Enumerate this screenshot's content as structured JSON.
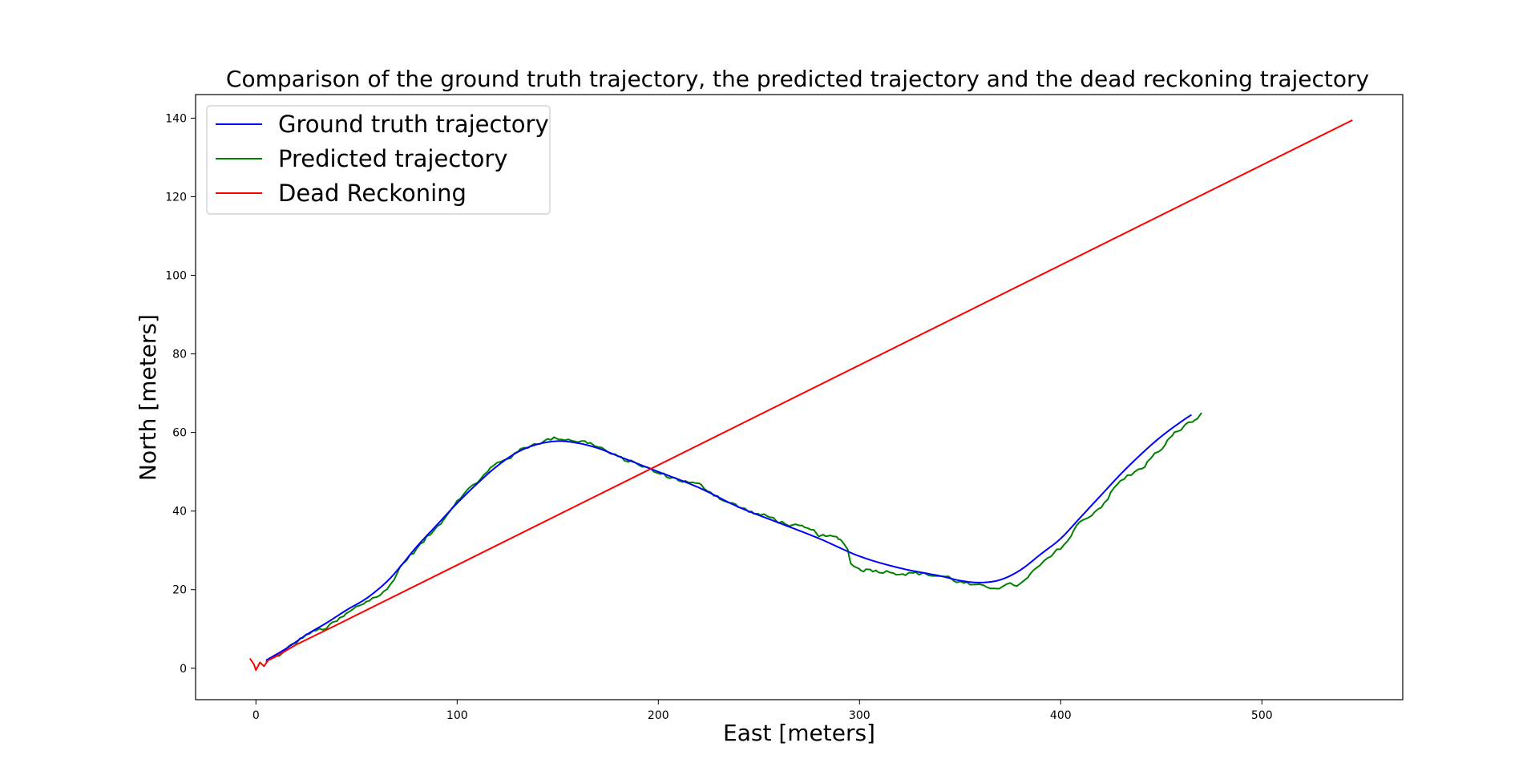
{
  "chart_data": {
    "type": "line",
    "title": "Comparison of the ground truth trajectory, the predicted trajectory and the dead reckoning trajectory",
    "xlabel": "East [meters]",
    "ylabel": "North [meters]",
    "xlim": [
      -30,
      570
    ],
    "ylim": [
      -8,
      146
    ],
    "xticks": [
      0,
      100,
      200,
      300,
      400,
      500
    ],
    "yticks": [
      0,
      20,
      40,
      60,
      80,
      100,
      120,
      140
    ],
    "grid": false,
    "legend_position": "upper-left",
    "series": [
      {
        "name": "Ground truth trajectory",
        "color": "#0000ff",
        "style": "smooth",
        "x": [
          5,
          15,
          25,
          35,
          45,
          55,
          65,
          72,
          80,
          90,
          100,
          110,
          120,
          130,
          140,
          150,
          160,
          170,
          180,
          190,
          200,
          220,
          240,
          260,
          280,
          300,
          320,
          340,
          350,
          360,
          370,
          380,
          390,
          400,
          410,
          420,
          430,
          440,
          450,
          460,
          465
        ],
        "y": [
          2,
          5,
          8.5,
          11.5,
          14.8,
          17.8,
          22,
          26,
          31,
          36.5,
          42,
          47,
          51.5,
          55,
          57,
          57.8,
          57.3,
          56,
          54,
          52,
          50,
          46,
          41,
          37,
          33,
          28.5,
          25.5,
          23.5,
          22.3,
          21.8,
          22.5,
          25,
          29,
          33,
          38.5,
          44,
          49.5,
          54.5,
          59,
          62.8,
          64.5
        ]
      },
      {
        "name": "Predicted trajectory",
        "color": "#008000",
        "style": "noisy",
        "x": [
          5,
          15,
          25,
          35,
          45,
          55,
          65,
          72,
          80,
          90,
          100,
          110,
          120,
          130,
          140,
          150,
          160,
          170,
          180,
          190,
          200,
          220,
          240,
          260,
          280,
          292,
          296,
          300,
          320,
          340,
          350,
          360,
          370,
          380,
          390,
          400,
          410,
          420,
          430,
          440,
          450,
          460,
          468,
          470
        ],
        "y": [
          1.5,
          4.5,
          8.5,
          10.3,
          13.5,
          17,
          20,
          26,
          30.5,
          36,
          43,
          47.5,
          52,
          55,
          57.5,
          58.5,
          58,
          56.5,
          53.5,
          52,
          49.5,
          46.5,
          41,
          37.5,
          34,
          32,
          27,
          25.5,
          24.5,
          23.5,
          22,
          20.5,
          21,
          21.5,
          26,
          30.5,
          37,
          41.5,
          47.5,
          51,
          56,
          61,
          63.5,
          65
        ]
      },
      {
        "name": "Dead Reckoning",
        "color": "#ff0000",
        "style": "straight",
        "x": [
          -3,
          -1,
          0,
          2,
          4,
          6,
          10,
          20,
          30,
          40,
          545
        ],
        "y": [
          2.5,
          1,
          -0.5,
          1.5,
          0.5,
          2,
          3,
          6,
          8.5,
          11,
          139.5
        ]
      }
    ]
  }
}
